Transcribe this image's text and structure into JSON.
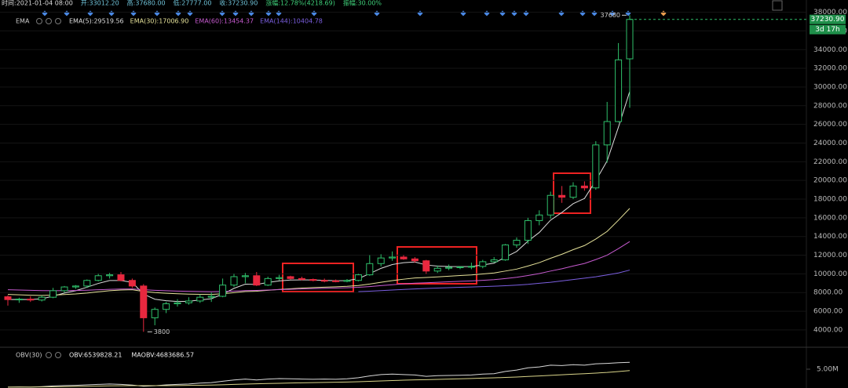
{
  "chart_data": [
    {
      "type": "candlestick",
      "info": [
        "时间:2021-01-04 08:00",
        "开:33012.20",
        "高:37680.00",
        "低:27777.00",
        "收:37230.90",
        "涨幅:12.78%(4218.69)",
        "振幅:30.00%"
      ],
      "indicator": "EMA",
      "up_color": "#2fbf6a",
      "down_color": "#e8283f",
      "open": [
        7550,
        7250,
        7300,
        7200,
        7500,
        8200,
        8600,
        8700,
        9300,
        9800,
        9900,
        9300,
        8700,
        5300,
        6200,
        6800,
        6900,
        7100,
        7500,
        7600,
        8800,
        9700,
        9800,
        8800,
        9500,
        9700,
        9500,
        9400,
        9300,
        9250,
        9200,
        9300,
        9900,
        11100,
        11700,
        11800,
        11600,
        11400,
        10300,
        10600,
        10700,
        10750,
        10800,
        11300,
        11500,
        13100,
        13600,
        15700,
        16300,
        18400,
        18200,
        19400,
        19200,
        23800,
        26300,
        33012.2
      ],
      "high": [
        7700,
        7450,
        7600,
        7700,
        8500,
        8700,
        8800,
        9400,
        10000,
        10100,
        10200,
        9500,
        8900,
        6400,
        7000,
        7300,
        7500,
        7800,
        8000,
        9500,
        10000,
        10100,
        10200,
        9700,
        9900,
        9800,
        9700,
        9500,
        9500,
        9400,
        9450,
        10000,
        12000,
        12100,
        12400,
        12000,
        11800,
        11500,
        10900,
        11000,
        10800,
        11200,
        11500,
        11800,
        13200,
        13900,
        16000,
        16800,
        18800,
        19400,
        19800,
        19900,
        24200,
        28400,
        34700,
        37680.0
      ],
      "low": [
        6600,
        6900,
        7000,
        7050,
        7400,
        8000,
        8400,
        8500,
        9200,
        9500,
        9200,
        8500,
        3800,
        4500,
        5800,
        6500,
        6700,
        6900,
        7000,
        7500,
        8600,
        9000,
        8700,
        8700,
        9300,
        9400,
        9300,
        9200,
        9100,
        9100,
        9100,
        9200,
        9800,
        10800,
        11400,
        11500,
        11200,
        10000,
        10100,
        10400,
        10500,
        10500,
        10600,
        11200,
        11400,
        12800,
        13200,
        15200,
        15900,
        17600,
        18000,
        18900,
        19000,
        21900,
        26200,
        27777.0
      ],
      "close": [
        7250,
        7300,
        7200,
        7500,
        8200,
        8600,
        8700,
        9300,
        9800,
        9900,
        9300,
        8700,
        5300,
        6200,
        6800,
        6900,
        7100,
        7500,
        7600,
        8800,
        9700,
        9800,
        8800,
        9500,
        9600,
        9500,
        9400,
        9300,
        9250,
        9200,
        9300,
        9900,
        11100,
        11700,
        11800,
        11600,
        11400,
        10300,
        10600,
        10700,
        10750,
        10800,
        11300,
        11500,
        13100,
        13600,
        15700,
        16300,
        18400,
        18200,
        19400,
        19200,
        23800,
        26300,
        32900,
        37230.9
      ],
      "series": [
        {
          "legend": "EMA(5):29519.56",
          "color": "#dcdcdc",
          "values": [
            7250,
            7270,
            7250,
            7330,
            7620,
            7950,
            8200,
            8570,
            8980,
            9290,
            9290,
            9090,
            7830,
            7290,
            7130,
            7050,
            7070,
            7210,
            7340,
            7830,
            8450,
            8900,
            8870,
            9080,
            9250,
            9340,
            9360,
            9340,
            9310,
            9270,
            9280,
            9490,
            10030,
            10590,
            11000,
            11200,
            11270,
            10950,
            10830,
            10790,
            10780,
            10790,
            10960,
            11140,
            11790,
            12400,
            13500,
            14430,
            15750,
            16570,
            17510,
            18070,
            19980,
            22090,
            25690,
            29519.56
          ]
        },
        {
          "legend": "EMA(30):17006.90",
          "color": "#e6e29a",
          "values": [
            7800,
            7760,
            7720,
            7700,
            7730,
            7790,
            7850,
            7950,
            8080,
            8200,
            8270,
            8300,
            8110,
            8000,
            7930,
            7870,
            7830,
            7810,
            7800,
            7870,
            7990,
            8110,
            8150,
            8240,
            8330,
            8410,
            8480,
            8530,
            8580,
            8620,
            8670,
            8750,
            8910,
            9100,
            9280,
            9430,
            9560,
            9610,
            9680,
            9750,
            9820,
            9890,
            9990,
            10100,
            10300,
            10510,
            10840,
            11200,
            11670,
            12100,
            12590,
            13030,
            13730,
            14540,
            15740,
            17006.9
          ]
        },
        {
          "legend": "EMA(60):13454.37",
          "color": "#c75bd0",
          "values": [
            8300,
            8270,
            8240,
            8210,
            8200,
            8210,
            8220,
            8250,
            8300,
            8350,
            8380,
            8390,
            8300,
            8240,
            8200,
            8160,
            8130,
            8110,
            8090,
            8110,
            8160,
            8210,
            8230,
            8270,
            8310,
            8350,
            8390,
            8420,
            8450,
            8480,
            8510,
            8560,
            8640,
            8740,
            8840,
            8930,
            9010,
            9050,
            9100,
            9150,
            9200,
            9250,
            9310,
            9380,
            9500,
            9630,
            9820,
            10030,
            10300,
            10550,
            10840,
            11110,
            11530,
            12000,
            12700,
            13454.37
          ]
        },
        {
          "legend": "EMA(144):10404.78",
          "color": "#7b5fe0",
          "values": [
            null,
            null,
            null,
            null,
            null,
            null,
            null,
            null,
            null,
            null,
            null,
            null,
            null,
            null,
            null,
            null,
            null,
            null,
            null,
            null,
            null,
            null,
            null,
            null,
            null,
            null,
            null,
            null,
            null,
            null,
            null,
            8100,
            8150,
            8210,
            8270,
            8330,
            8390,
            8440,
            8480,
            8520,
            8560,
            8600,
            8640,
            8680,
            8730,
            8800,
            8880,
            8990,
            9100,
            9250,
            9390,
            9540,
            9690,
            9890,
            10100,
            10404.78
          ]
        }
      ],
      "last_price": {
        "value": 37230.9,
        "label": "37230.90"
      },
      "countdown": "3d 17h",
      "ylim": [
        2400,
        38300
      ],
      "yticks": [
        {
          "value": 4000,
          "label": "4000.00"
        },
        {
          "value": 6000,
          "label": "6000.00"
        },
        {
          "value": 8000,
          "label": "8000.00"
        },
        {
          "value": 10000,
          "label": "10000.00"
        },
        {
          "value": 12000,
          "label": "12000.00"
        },
        {
          "value": 14000,
          "label": "14000.00"
        },
        {
          "value": 16000,
          "label": "16000.00"
        },
        {
          "value": 18000,
          "label": "18000.00"
        },
        {
          "value": 20000,
          "label": "20000.00"
        },
        {
          "value": 22000,
          "label": "22000.00"
        },
        {
          "value": 24000,
          "label": "24000.00"
        },
        {
          "value": 26000,
          "label": "26000.00"
        },
        {
          "value": 28000,
          "label": "28000.00"
        },
        {
          "value": 30000,
          "label": "30000.00"
        },
        {
          "value": 32000,
          "label": "32000.00"
        },
        {
          "value": 34000,
          "label": "34000.00"
        },
        {
          "value": 36000,
          "label": "36000.00"
        },
        {
          "value": 38000,
          "label": "38000.00"
        }
      ],
      "grid": true
    },
    {
      "type": "line",
      "indicator": "OBV(30)",
      "series": [
        {
          "legend": "OBV:6539828.21",
          "color": "#d8d8d8",
          "values": [
            1000000,
            1050000,
            1000000,
            1100000,
            1250000,
            1350000,
            1400000,
            1500000,
            1600000,
            1700000,
            1600000,
            1450000,
            1200000,
            1300000,
            1500000,
            1600000,
            1700000,
            1900000,
            2000000,
            2300000,
            2600000,
            2800000,
            2600000,
            2800000,
            2900000,
            2850000,
            2800000,
            2750000,
            2800000,
            2750000,
            2850000,
            3100000,
            3500000,
            3800000,
            3900000,
            3800000,
            3700000,
            3400000,
            3550000,
            3600000,
            3650000,
            3700000,
            3900000,
            4000000,
            4500000,
            4800000,
            5300000,
            5500000,
            5900000,
            5800000,
            6000000,
            5900000,
            6200000,
            6300000,
            6450000,
            6539828.21
          ]
        },
        {
          "legend": "MAOBV:4683686.57",
          "color": "#d9d48a",
          "values": [
            1000000,
            1020000,
            1020000,
            1040000,
            1070000,
            1100000,
            1140000,
            1180000,
            1230000,
            1280000,
            1310000,
            1330000,
            1320000,
            1320000,
            1330000,
            1350000,
            1380000,
            1420000,
            1460000,
            1520000,
            1600000,
            1680000,
            1740000,
            1800000,
            1860000,
            1910000,
            1960000,
            2000000,
            2040000,
            2080000,
            2130000,
            2200000,
            2280000,
            2370000,
            2460000,
            2540000,
            2610000,
            2670000,
            2730000,
            2800000,
            2860000,
            2930000,
            3000000,
            3070000,
            3160000,
            3260000,
            3380000,
            3500000,
            3630000,
            3760000,
            3890000,
            4000000,
            4130000,
            4270000,
            4470000,
            4683686.57
          ]
        }
      ],
      "ylim": [
        800000,
        9550000
      ],
      "yticks": [
        {
          "value": 5000000,
          "label": "5.00M"
        }
      ]
    }
  ]
}
